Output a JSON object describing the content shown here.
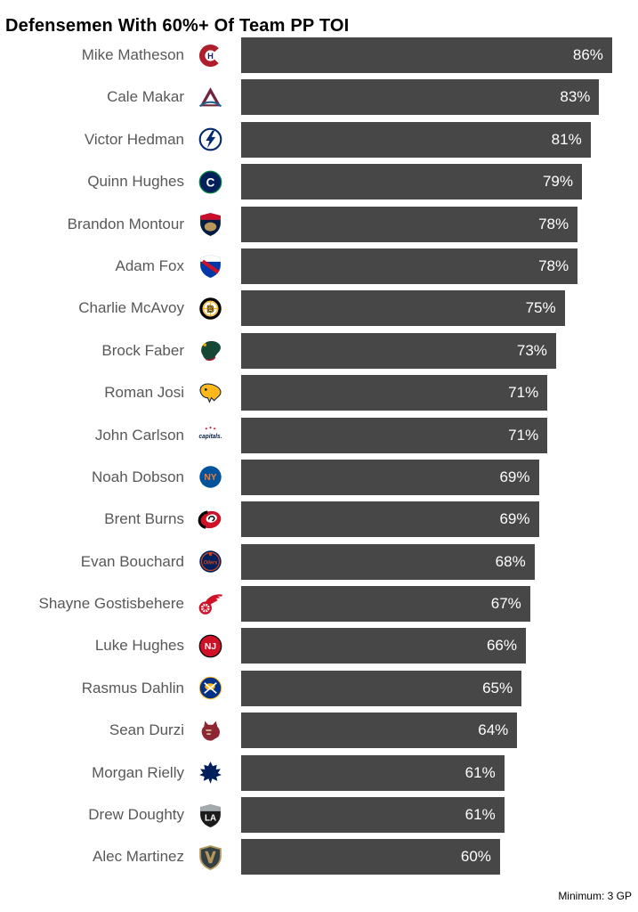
{
  "title": "Defensemen With 60%+ Of Team PP TOI",
  "footer": {
    "note": "Minimum: 3 GP"
  },
  "colors": {
    "bar": "#474747",
    "bar_label": "#ffffff",
    "player_name_text": "#58585a",
    "title_text": "#000000"
  },
  "chart_data": {
    "type": "bar",
    "orientation": "horizontal",
    "title": "Defensemen With 60%+ Of Team PP TOI",
    "note": "Minimum: 3 GP",
    "xlabel": "",
    "ylabel": "",
    "value_suffix": "%",
    "axis_max": 92,
    "grid": false,
    "bar_color": "#474747",
    "categories": [
      "Mike Matheson",
      "Cale Makar",
      "Victor Hedman",
      "Quinn Hughes",
      "Brandon Montour",
      "Adam Fox",
      "Charlie McAvoy",
      "Brock Faber",
      "Roman Josi",
      "John Carlson",
      "Noah Dobson",
      "Brent Burns",
      "Evan Bouchard",
      "Shayne Gostisbehere",
      "Luke Hughes",
      "Rasmus Dahlin",
      "Sean Durzi",
      "Morgan Rielly",
      "Drew Doughty",
      "Alec Martinez"
    ],
    "values": [
      86,
      83,
      81,
      79,
      78,
      78,
      75,
      73,
      71,
      71,
      69,
      69,
      68,
      67,
      66,
      65,
      64,
      61,
      61,
      60
    ],
    "rows": [
      {
        "player": "Mike Matheson",
        "team": "MTL",
        "team_name": "Montreal Canadiens",
        "value": 86
      },
      {
        "player": "Cale Makar",
        "team": "COL",
        "team_name": "Colorado Avalanche",
        "value": 83
      },
      {
        "player": "Victor Hedman",
        "team": "TBL",
        "team_name": "Tampa Bay Lightning",
        "value": 81
      },
      {
        "player": "Quinn Hughes",
        "team": "VAN",
        "team_name": "Vancouver Canucks",
        "value": 79
      },
      {
        "player": "Brandon Montour",
        "team": "FLA",
        "team_name": "Florida Panthers",
        "value": 78
      },
      {
        "player": "Adam Fox",
        "team": "NYR",
        "team_name": "New York Rangers",
        "value": 78
      },
      {
        "player": "Charlie McAvoy",
        "team": "BOS",
        "team_name": "Boston Bruins",
        "value": 75
      },
      {
        "player": "Brock Faber",
        "team": "MIN",
        "team_name": "Minnesota Wild",
        "value": 73
      },
      {
        "player": "Roman Josi",
        "team": "NSH",
        "team_name": "Nashville Predators",
        "value": 71
      },
      {
        "player": "John Carlson",
        "team": "WSH",
        "team_name": "Washington Capitals",
        "value": 71
      },
      {
        "player": "Noah Dobson",
        "team": "NYI",
        "team_name": "New York Islanders",
        "value": 69
      },
      {
        "player": "Brent Burns",
        "team": "CAR",
        "team_name": "Carolina Hurricanes",
        "value": 69
      },
      {
        "player": "Evan Bouchard",
        "team": "EDM",
        "team_name": "Edmonton Oilers",
        "value": 68
      },
      {
        "player": "Shayne Gostisbehere",
        "team": "DET",
        "team_name": "Detroit Red Wings",
        "value": 67
      },
      {
        "player": "Luke Hughes",
        "team": "NJD",
        "team_name": "New Jersey Devils",
        "value": 66
      },
      {
        "player": "Rasmus Dahlin",
        "team": "BUF",
        "team_name": "Buffalo Sabres",
        "value": 65
      },
      {
        "player": "Sean Durzi",
        "team": "ARI",
        "team_name": "Arizona Coyotes",
        "value": 64
      },
      {
        "player": "Morgan Rielly",
        "team": "TOR",
        "team_name": "Toronto Maple Leafs",
        "value": 61
      },
      {
        "player": "Drew Doughty",
        "team": "LAK",
        "team_name": "Los Angeles Kings",
        "value": 61
      },
      {
        "player": "Alec Martinez",
        "team": "VGK",
        "team_name": "Vegas Golden Knights",
        "value": 60
      }
    ]
  },
  "team_logos": {
    "MTL": {
      "icon": "canadiens-ch-logo",
      "shape": "mtl",
      "colors": [
        "#AF1E2D",
        "#192168",
        "#ffffff"
      ],
      "text": "H"
    },
    "COL": {
      "icon": "avalanche-a-logo",
      "shape": "triangle",
      "colors": [
        "#6F263D",
        "#ffffff",
        "#236192"
      ]
    },
    "TBL": {
      "icon": "lightning-bolt-logo",
      "shape": "bolt",
      "colors": [
        "#ffffff",
        "#00286E"
      ]
    },
    "VAN": {
      "icon": "canucks-orca-logo",
      "shape": "circle-letter",
      "colors": [
        "#00205B",
        "#ffffff",
        "#00843D"
      ],
      "text": "C",
      "size": 13
    },
    "FLA": {
      "icon": "panthers-shield-logo",
      "shape": "shield-flag",
      "colors": [
        "#041E42",
        "#C8102E",
        "#B9975B"
      ]
    },
    "NYR": {
      "icon": "rangers-shield-logo",
      "shape": "shield-diag",
      "colors": [
        "#0038A8",
        "#ffffff",
        "#CE1126"
      ]
    },
    "BOS": {
      "icon": "bruins-b-logo",
      "shape": "bruins",
      "colors": [
        "#000000",
        "#FFB81C"
      ],
      "text": "B"
    },
    "MIN": {
      "icon": "wild-animal-logo",
      "shape": "beast",
      "colors": [
        "#154734",
        "#EAAA00",
        "#A6192E"
      ]
    },
    "NSH": {
      "icon": "predators-fang-logo",
      "shape": "fang",
      "colors": [
        "#FFB81C",
        "#041E42"
      ]
    },
    "WSH": {
      "icon": "capitals-script-logo",
      "shape": "script",
      "colors": [
        "#041E42",
        "#C8102E"
      ],
      "text": "capitals"
    },
    "NYI": {
      "icon": "islanders-ny-logo",
      "shape": "circle-letter",
      "colors": [
        "#00539B",
        "#F47D30"
      ],
      "text": "NY",
      "size": 10
    },
    "CAR": {
      "icon": "hurricanes-flag-logo",
      "shape": "swirl",
      "colors": [
        "#CE1126",
        "#000000",
        "#ffffff"
      ]
    },
    "EDM": {
      "icon": "oilers-drop-logo",
      "shape": "oilers",
      "colors": [
        "#00205B",
        "#CF4520"
      ],
      "text": "Oilers"
    },
    "DET": {
      "icon": "red-wings-winged-wheel-logo",
      "shape": "wing",
      "colors": [
        "#CE1126"
      ]
    },
    "NJD": {
      "icon": "devils-nj-logo",
      "shape": "circle-letter",
      "colors": [
        "#CE1126",
        "#ffffff",
        "#000000"
      ],
      "text": "NJ",
      "size": 10
    },
    "BUF": {
      "icon": "sabres-crossed-swords-logo",
      "shape": "sabres",
      "colors": [
        "#003087",
        "#FFB81C",
        "#ffffff"
      ]
    },
    "ARI": {
      "icon": "coyotes-kachina-logo",
      "shape": "coyote",
      "colors": [
        "#8C2633",
        "#E2D6B5"
      ]
    },
    "TOR": {
      "icon": "maple-leafs-leaf-logo",
      "shape": "leaf",
      "colors": [
        "#00205B"
      ]
    },
    "LAK": {
      "icon": "kings-la-shield-logo",
      "shape": "shield-la",
      "colors": [
        "#1B1B1B",
        "#A2AAAD",
        "#ffffff"
      ],
      "text": "LA"
    },
    "VGK": {
      "icon": "golden-knights-shield-logo",
      "shape": "shield-v",
      "colors": [
        "#B4975A",
        "#333F42"
      ]
    }
  }
}
